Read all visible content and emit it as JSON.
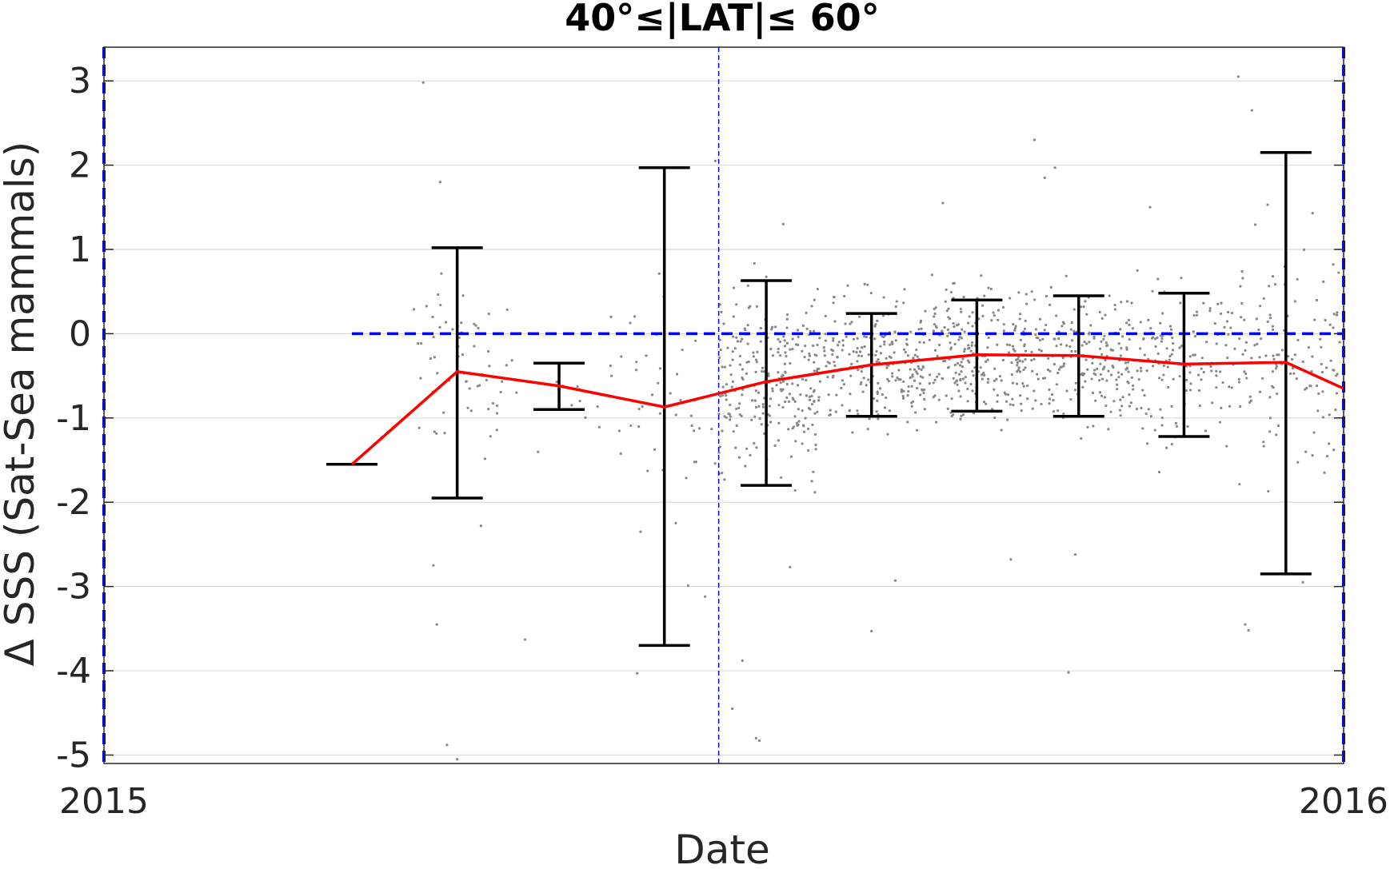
{
  "chart_data": {
    "type": "line",
    "title": "40°≤|LAT|≤ 60°",
    "xlabel": "Date",
    "ylabel": "Δ SSS (Sat-Sea mammals)",
    "x_axis": {
      "type": "date",
      "range": [
        "2015-01-01",
        "2016-01-01"
      ],
      "ticks": [
        "2015-01-01",
        "2016-01-01"
      ],
      "tick_labels": [
        "2015",
        "2016"
      ]
    },
    "y_axis": {
      "range": [
        -5.1,
        3.4
      ],
      "ticks": [
        3,
        2,
        1,
        0,
        -1,
        -2,
        -3,
        -4,
        -5
      ],
      "tick_labels": [
        "3",
        "2",
        "1",
        "0",
        "-1",
        "-2",
        "-3",
        "-4",
        "-5"
      ],
      "grid": true
    },
    "series": [
      {
        "kind": "line",
        "color": "#ff0000",
        "x": [
          "2015-03-15",
          "2015-04-15",
          "2015-05-15",
          "2015-06-15",
          "2015-07-15",
          "2015-08-15",
          "2015-09-15",
          "2015-10-15",
          "2015-11-15",
          "2015-12-15",
          "2016-01-01"
        ],
        "y": [
          -1.55,
          -0.45,
          -0.62,
          -0.87,
          -0.57,
          -0.37,
          -0.25,
          -0.26,
          -0.36,
          -0.34,
          -0.65
        ]
      },
      {
        "kind": "errorbar",
        "color": "#000000",
        "x": [
          "2015-03-15",
          "2015-04-15",
          "2015-05-15",
          "2015-06-15",
          "2015-07-15",
          "2015-08-15",
          "2015-09-15",
          "2015-10-15",
          "2015-11-15",
          "2015-12-15"
        ],
        "low": [
          -1.55,
          -1.95,
          -0.9,
          -3.7,
          -1.8,
          -0.98,
          -0.92,
          -0.98,
          -1.22,
          -2.85
        ],
        "high": [
          -1.55,
          1.02,
          -0.35,
          1.97,
          0.63,
          0.24,
          0.4,
          0.45,
          0.48,
          2.15
        ]
      },
      {
        "kind": "reference-line",
        "color": "#0000ff",
        "style": "dashed",
        "x": [
          "2015-03-15",
          "2016-01-01"
        ],
        "y": [
          0,
          0
        ]
      }
    ],
    "vertical_lines": [
      {
        "x": "2015-01-01",
        "color": "#0000ff",
        "style": "dashed"
      },
      {
        "x": "2015-07-01",
        "color": "#0000ff",
        "style": "thin-dashed"
      },
      {
        "x": "2016-01-01",
        "color": "#0000ff",
        "style": "dashed"
      }
    ],
    "scatter": {
      "color": "#888888",
      "description_free": true,
      "clusters": [
        {
          "x_range": [
            "2015-04-01",
            "2015-04-30"
          ],
          "center": -0.4,
          "spread": 0.7,
          "count": 60
        },
        {
          "x_range": [
            "2015-05-01",
            "2015-05-31"
          ],
          "center": -0.6,
          "spread": 0.5,
          "count": 15
        },
        {
          "x_range": [
            "2015-06-01",
            "2015-06-30"
          ],
          "center": -0.8,
          "spread": 1.0,
          "count": 40
        },
        {
          "x_range": [
            "2015-07-01",
            "2015-07-31"
          ],
          "center": -0.55,
          "spread": 0.75,
          "count": 260
        },
        {
          "x_range": [
            "2015-08-01",
            "2015-08-31"
          ],
          "center": -0.37,
          "spread": 0.55,
          "count": 220
        },
        {
          "x_range": [
            "2015-09-01",
            "2015-09-30"
          ],
          "center": -0.25,
          "spread": 0.55,
          "count": 230
        },
        {
          "x_range": [
            "2015-10-01",
            "2015-10-31"
          ],
          "center": -0.26,
          "spread": 0.6,
          "count": 200
        },
        {
          "x_range": [
            "2015-11-01",
            "2015-11-30"
          ],
          "center": -0.36,
          "spread": 0.7,
          "count": 140
        },
        {
          "x_range": [
            "2015-12-01",
            "2015-12-31"
          ],
          "center": -0.3,
          "spread": 0.9,
          "count": 130
        }
      ],
      "outliers": [
        [
          "2015-04-05",
          2.98
        ],
        [
          "2015-04-10",
          1.8
        ],
        [
          "2015-04-12",
          -4.88
        ],
        [
          "2015-04-15",
          -5.05
        ],
        [
          "2015-04-08",
          -2.75
        ],
        [
          "2015-04-09",
          -3.45
        ],
        [
          "2015-04-22",
          -2.28
        ],
        [
          "2015-05-05",
          -3.63
        ],
        [
          "2015-06-08",
          -2.35
        ],
        [
          "2015-06-07",
          -4.03
        ],
        [
          "2015-06-15",
          -3.0
        ],
        [
          "2015-06-27",
          -3.12
        ],
        [
          "2015-06-22",
          -2.99
        ],
        [
          "2015-06-30",
          2.05
        ],
        [
          "2015-07-05",
          -4.45
        ],
        [
          "2015-07-08",
          -3.88
        ],
        [
          "2015-07-12",
          -4.8
        ],
        [
          "2015-07-13",
          -4.83
        ],
        [
          "2015-07-22",
          -2.77
        ],
        [
          "2015-07-20",
          1.3
        ],
        [
          "2015-08-15",
          -3.53
        ],
        [
          "2015-08-22",
          -2.93
        ],
        [
          "2015-09-05",
          1.55
        ],
        [
          "2015-09-25",
          -2.68
        ],
        [
          "2015-10-05",
          1.85
        ],
        [
          "2015-10-12",
          -4.02
        ],
        [
          "2015-10-14",
          -2.62
        ],
        [
          "2015-10-02",
          2.3
        ],
        [
          "2015-10-08",
          1.97
        ],
        [
          "2015-11-05",
          1.5
        ],
        [
          "2015-12-01",
          3.05
        ],
        [
          "2015-12-05",
          2.65
        ],
        [
          "2015-12-03",
          -3.45
        ],
        [
          "2015-12-04",
          -3.52
        ],
        [
          "2015-12-20",
          -2.95
        ]
      ]
    }
  }
}
